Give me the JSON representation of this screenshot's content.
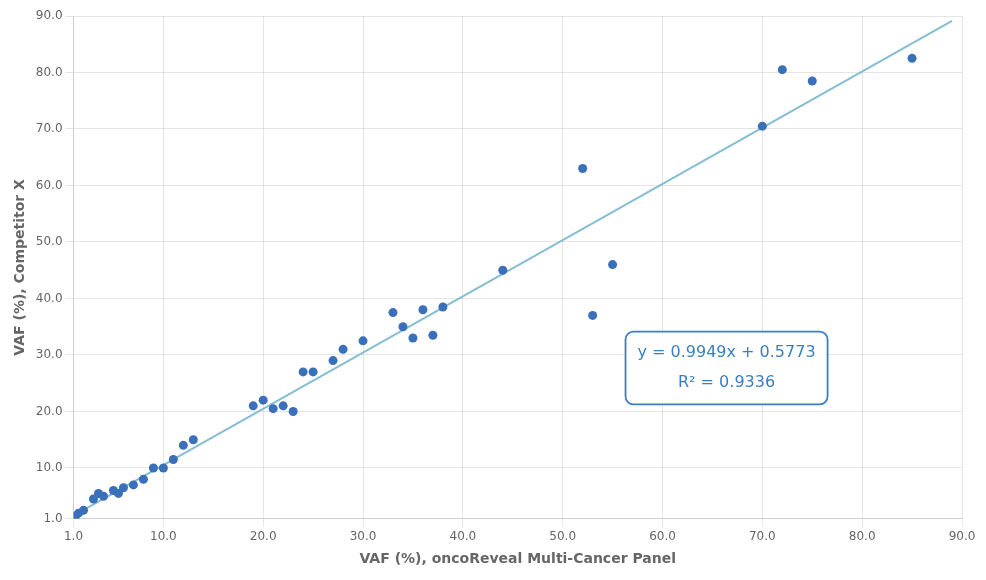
{
  "chart_data": {
    "type": "scatter",
    "xlabel": "VAF (%), oncoReveal Multi-Cancer Panel",
    "ylabel": "VAF (%), Competitor X",
    "series": [
      {
        "type": "line",
        "color": "#85bdd4",
        "x": [
          1.0,
          89.0
        ],
        "values": [
          1.5722,
          89.1234
        ]
      },
      {
        "type": "scatter",
        "color": "#3a6fba",
        "x": [
          1.2,
          1.5,
          2.0,
          3.0,
          3.5,
          4.0,
          5.0,
          5.5,
          6.0,
          7.0,
          8.0,
          9.0,
          10.0,
          11.0,
          12.0,
          13.0,
          19.0,
          20.0,
          21.0,
          22.0,
          23.0,
          24.0,
          25.0,
          27.0,
          28.0,
          30.0,
          33.0,
          34.0,
          35.0,
          36.0,
          37.0,
          38.0,
          44.0,
          52.0,
          53.0,
          55.0,
          70.0,
          72.0,
          75.0,
          85.0
        ],
        "values": [
          1.5,
          2.0,
          2.5,
          4.5,
          5.5,
          5.0,
          6.0,
          5.5,
          6.5,
          7.0,
          8.0,
          10.0,
          10.0,
          11.5,
          14.0,
          15.0,
          21.0,
          22.0,
          20.5,
          21.0,
          20.0,
          27.0,
          27.0,
          29.0,
          31.0,
          32.5,
          37.5,
          35.0,
          33.0,
          38.0,
          33.5,
          38.5,
          45.0,
          63.0,
          37.0,
          46.0,
          70.5,
          80.5,
          78.5,
          82.5
        ]
      }
    ],
    "xlim": [
      1.0,
      90.0
    ],
    "ylim": [
      1.0,
      90.0
    ],
    "xticks": [
      {
        "value": 1,
        "label": "1.0"
      },
      {
        "value": 10,
        "label": "10.0"
      },
      {
        "value": 20,
        "label": "20.0"
      },
      {
        "value": 30,
        "label": "30.0"
      },
      {
        "value": 40,
        "label": "40.0"
      },
      {
        "value": 50,
        "label": "50.0"
      },
      {
        "value": 60,
        "label": "60.0"
      },
      {
        "value": 70,
        "label": "70.0"
      },
      {
        "value": 80,
        "label": "80.0"
      },
      {
        "value": 90,
        "label": "90.0"
      }
    ],
    "yticks": [
      {
        "value": 1,
        "label": "1.0"
      },
      {
        "value": 10,
        "label": "10.0"
      },
      {
        "value": 20,
        "label": "20.0"
      },
      {
        "value": 30,
        "label": "30.0"
      },
      {
        "value": 40,
        "label": "40.0"
      },
      {
        "value": 50,
        "label": "50.0"
      },
      {
        "value": 60,
        "label": "60.0"
      },
      {
        "value": 70,
        "label": "70.0"
      },
      {
        "value": 80,
        "label": "80.0"
      },
      {
        "value": 90,
        "label": "90.0"
      }
    ],
    "annotations": [
      "y = 0.9949x + 0.5773",
      "R² = 0.9336"
    ],
    "grid": true
  }
}
